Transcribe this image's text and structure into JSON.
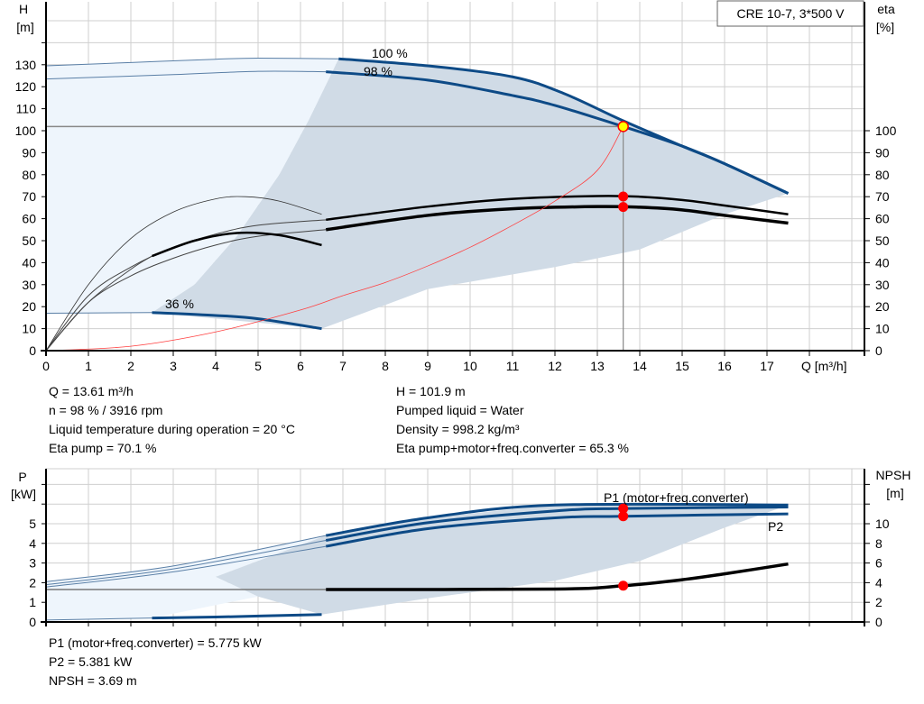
{
  "title": "CRE 10-7, 3*500 V",
  "colors": {
    "curve": "#0d4a86",
    "area_dark": "#d0dbe6",
    "area_light": "#eef5fc",
    "grid": "#cfcfcf",
    "system": "#ff4040",
    "point": "#ff0000",
    "duty": "#ffff00"
  },
  "chart_data": [
    {
      "type": "line",
      "title": "",
      "xlabel": "Q [m³/h]",
      "xlim": [
        0,
        19
      ],
      "grid": true,
      "ylabel_left": {
        "line1": "H",
        "line2": "[m]"
      },
      "ylabel_right": {
        "line1": "eta",
        "line2": "[%]"
      },
      "ylim": [
        0,
        140
      ],
      "xticks": [
        0,
        1,
        2,
        3,
        4,
        5,
        6,
        7,
        8,
        9,
        10,
        11,
        12,
        13,
        14,
        15,
        16,
        17
      ],
      "yticks_left": [
        0,
        10,
        20,
        30,
        40,
        50,
        60,
        70,
        80,
        90,
        100,
        110,
        120,
        130
      ],
      "yticks_right": [
        0,
        10,
        20,
        30,
        40,
        50,
        60,
        70,
        80,
        90,
        100
      ],
      "curve_labels": [
        "100 %",
        "98 %",
        "36 %"
      ],
      "series": [
        {
          "name": "100 %",
          "axis": "H",
          "style": "head",
          "split": 6.9,
          "points": [
            [
              0,
              129.5
            ],
            [
              2,
              131
            ],
            [
              4,
              132.5
            ],
            [
              5,
              133
            ],
            [
              6.9,
              132.7
            ],
            [
              9,
              129.5
            ],
            [
              11,
              124.5
            ],
            [
              12.2,
              117
            ],
            [
              13.61,
              104.5
            ],
            [
              15,
              93
            ],
            [
              16,
              85
            ],
            [
              17.5,
              71.5
            ]
          ]
        },
        {
          "name": "98 %",
          "axis": "H",
          "style": "head",
          "split": 6.6,
          "points": [
            [
              0,
              123.5
            ],
            [
              3,
              125.5
            ],
            [
              5,
              127
            ],
            [
              6.6,
              126.8
            ],
            [
              9,
              123
            ],
            [
              11,
              116
            ],
            [
              12,
              111.5
            ],
            [
              13.61,
              101.9
            ],
            [
              15,
              93
            ],
            [
              16,
              85
            ],
            [
              17.5,
              71.5
            ]
          ]
        },
        {
          "name": "36 %",
          "axis": "H",
          "style": "head",
          "split": 2.5,
          "points": [
            [
              0,
              17
            ],
            [
              2.5,
              17.3
            ],
            [
              4,
              16
            ],
            [
              5,
              14.5
            ],
            [
              6.5,
              10
            ]
          ]
        },
        {
          "axis": "eta",
          "style": "eta",
          "split": 6.6,
          "points": [
            [
              0,
              0
            ],
            [
              1,
              25
            ],
            [
              2,
              38
            ],
            [
              3,
              47
            ],
            [
              4,
              53
            ],
            [
              5,
              57
            ],
            [
              6.6,
              59.5
            ],
            [
              9,
              65.5
            ],
            [
              11,
              69
            ],
            [
              13,
              70.3
            ],
            [
              14,
              70
            ],
            [
              15,
              68.5
            ],
            [
              16,
              66
            ],
            [
              17.5,
              62
            ]
          ]
        },
        {
          "axis": "eta",
          "style": "eta2",
          "split": 6.6,
          "points": [
            [
              0,
              0
            ],
            [
              1,
              22
            ],
            [
              2,
              34
            ],
            [
              3,
              42
            ],
            [
              4,
              48
            ],
            [
              5,
              52
            ],
            [
              6.6,
              55
            ],
            [
              9,
              61.5
            ],
            [
              11,
              64.5
            ],
            [
              13,
              65.5
            ],
            [
              14,
              65.2
            ],
            [
              15,
              64
            ],
            [
              16,
              61.5
            ],
            [
              17.5,
              58
            ]
          ]
        },
        {
          "axis": "eta",
          "style": "thin",
          "points": [
            [
              0,
              0
            ],
            [
              1,
              30
            ],
            [
              2,
              51
            ],
            [
              3,
              63
            ],
            [
              4,
              69
            ],
            [
              4.7,
              70
            ],
            [
              5.5,
              68
            ],
            [
              6.5,
              62
            ]
          ]
        },
        {
          "axis": "eta",
          "style": "eta",
          "split": 2.5,
          "points": [
            [
              0,
              0
            ],
            [
              1,
              22
            ],
            [
              2,
              37
            ],
            [
              2.5,
              43
            ],
            [
              3.5,
              50
            ],
            [
              4.5,
              53.5
            ],
            [
              5.5,
              52.5
            ],
            [
              6.5,
              48
            ]
          ]
        },
        {
          "axis": "H",
          "style": "system",
          "points": [
            [
              0,
              0
            ],
            [
              2,
              2
            ],
            [
              4,
              8.5
            ],
            [
              6,
              18.5
            ],
            [
              7,
              25
            ],
            [
              8,
              31
            ],
            [
              9,
              38.5
            ],
            [
              10,
              47
            ],
            [
              11,
              57
            ],
            [
              12,
              68
            ],
            [
              13,
              82
            ],
            [
              13.61,
              101.9
            ]
          ]
        }
      ],
      "area_dark": [
        [
          6.9,
          132.7
        ],
        [
          9,
          129.5
        ],
        [
          11,
          124.5
        ],
        [
          12.2,
          117
        ],
        [
          13.61,
          104.5
        ],
        [
          15,
          93
        ],
        [
          16,
          85
        ],
        [
          17.5,
          71.5
        ],
        [
          16,
          62
        ],
        [
          14,
          46
        ],
        [
          12,
          38
        ],
        [
          9,
          28
        ],
        [
          6.5,
          10
        ],
        [
          2.5,
          17.3
        ],
        [
          3.5,
          30
        ],
        [
          4.5,
          52
        ],
        [
          5.5,
          80
        ],
        [
          6.2,
          105
        ],
        [
          6.9,
          132.7
        ]
      ],
      "area_light": [
        [
          0,
          129.5
        ],
        [
          2,
          131
        ],
        [
          4,
          132.5
        ],
        [
          5,
          133
        ],
        [
          6.9,
          132.7
        ],
        [
          6.2,
          105
        ],
        [
          5.5,
          80
        ],
        [
          4.5,
          52
        ],
        [
          3.5,
          30
        ],
        [
          2.5,
          17.3
        ],
        [
          0,
          17
        ]
      ],
      "duty_point": {
        "Q": 13.61,
        "H": 101.9,
        "eta_pump": 70.1,
        "eta_total": 65.3
      }
    },
    {
      "type": "line",
      "title": "",
      "xlim": [
        0,
        19
      ],
      "grid": true,
      "ylabel_left": {
        "line1": "P",
        "line2": "[kW]"
      },
      "ylabel_right": {
        "line1": "NPSH",
        "line2": "[m]"
      },
      "ylim": [
        0,
        7.8
      ],
      "yticks_left": [
        0,
        1,
        2,
        3,
        4,
        5
      ],
      "yticks_right": [
        0,
        2,
        4,
        6,
        8,
        10
      ],
      "curve_labels": [
        "P1 (motor+freq.converter)",
        "P2"
      ],
      "series": [
        {
          "axis": "P",
          "style": "head",
          "split": 6.6,
          "points": [
            [
              0,
              2.05
            ],
            [
              3,
              2.85
            ],
            [
              6.6,
              4.4
            ],
            [
              9,
              5.3
            ],
            [
              12,
              5.95
            ],
            [
              17.5,
              5.95
            ]
          ]
        },
        {
          "axis": "P",
          "style": "head",
          "split": 6.6,
          "points": [
            [
              0,
              1.9
            ],
            [
              3,
              2.7
            ],
            [
              6.6,
              4.15
            ],
            [
              9,
              5.05
            ],
            [
              12,
              5.65
            ],
            [
              13.61,
              5.775
            ],
            [
              17.5,
              5.85
            ]
          ]
        },
        {
          "axis": "P",
          "style": "head",
          "split": 6.6,
          "points": [
            [
              0,
              1.78
            ],
            [
              3,
              2.55
            ],
            [
              6.6,
              3.85
            ],
            [
              9,
              4.75
            ],
            [
              12,
              5.3
            ],
            [
              13.61,
              5.381
            ],
            [
              17.5,
              5.5
            ]
          ]
        },
        {
          "axis": "P",
          "style": "head",
          "split": 2.5,
          "points": [
            [
              0,
              0.1
            ],
            [
              2.5,
              0.2
            ],
            [
              4,
              0.25
            ],
            [
              6.5,
              0.38
            ]
          ]
        },
        {
          "axis": "NPSH",
          "style": "npsh",
          "split": 6.6,
          "points": [
            [
              0,
              3.3
            ],
            [
              6.6,
              3.3
            ],
            [
              12,
              3.35
            ],
            [
              13.61,
              3.69
            ],
            [
              15,
              4.3
            ],
            [
              16,
              4.9
            ],
            [
              17.5,
              5.9
            ]
          ]
        }
      ],
      "area_dark": [
        [
          6.6,
          4.4
        ],
        [
          9,
          5.3
        ],
        [
          12,
          5.95
        ],
        [
          17.5,
          5.95
        ],
        [
          16,
          4.8
        ],
        [
          14,
          3.1
        ],
        [
          12,
          2.1
        ],
        [
          9,
          1.2
        ],
        [
          6.5,
          0.38
        ],
        [
          5,
          1.3
        ],
        [
          4,
          2.3
        ],
        [
          6.6,
          4.4
        ]
      ],
      "area_light": [
        [
          0,
          2.05
        ],
        [
          3,
          2.85
        ],
        [
          6.6,
          4.4
        ],
        [
          4,
          2.3
        ],
        [
          5,
          1.3
        ],
        [
          2.5,
          0.2
        ],
        [
          0,
          0.1
        ]
      ],
      "duty_point": {
        "Q": 13.61,
        "P1": 5.775,
        "P2": 5.381,
        "NPSH": 3.69
      }
    }
  ],
  "info_top_left": [
    "Q = 13.61 m³/h",
    "n = 98 % / 3916 rpm",
    "Liquid temperature during operation = 20 °C",
    "Eta pump = 70.1 %"
  ],
  "info_top_right": [
    "H = 101.9 m",
    "Pumped liquid = Water",
    "Density = 998.2 kg/m³",
    "Eta pump+motor+freq.converter = 65.3 %"
  ],
  "info_bottom": [
    "P1 (motor+freq.converter) = 5.775 kW",
    "P2 = 5.381 kW",
    "NPSH = 3.69 m"
  ]
}
